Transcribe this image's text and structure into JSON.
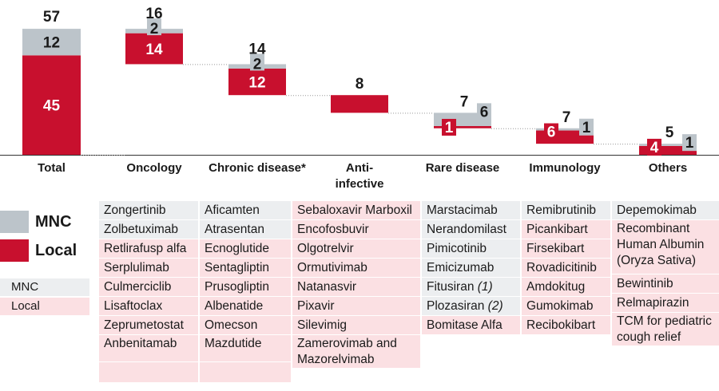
{
  "colors": {
    "mnc": "#bcc4ca",
    "local": "#c8102e",
    "mnc_light": "#eceef0",
    "local_light": "#fbe0e3"
  },
  "chart_data": {
    "type": "bar",
    "subtype": "waterfall",
    "categories": [
      "Total",
      "Oncology",
      "Chronic disease*",
      "Anti-\ninfective",
      "Rare disease",
      "Immunology",
      "Others"
    ],
    "series": [
      {
        "name": "Local",
        "values": [
          45,
          14,
          12,
          8,
          1,
          6,
          4
        ]
      },
      {
        "name": "MNC",
        "values": [
          12,
          2,
          2,
          0,
          6,
          1,
          1
        ]
      }
    ],
    "totals": [
      57,
      16,
      14,
      8,
      7,
      7,
      5
    ]
  },
  "legend": {
    "mnc": "MNC",
    "local": "Local"
  },
  "mini_legend": {
    "mnc": "MNC",
    "local": "Local"
  },
  "table": [
    {
      "category": "Oncology",
      "rows": [
        {
          "name": "Zongertinib",
          "type": "mnc"
        },
        {
          "name": "Zolbetuximab",
          "type": "mnc"
        },
        {
          "name": "Retlirafusp alfa",
          "type": "local"
        },
        {
          "name": "Serplulimab",
          "type": "local"
        },
        {
          "name": "Culmerciclib",
          "type": "local"
        },
        {
          "name": "Lisaftoclax",
          "type": "local"
        },
        {
          "name": "Zeprumetostat",
          "type": "local"
        },
        {
          "name": "Anbenitamab",
          "type": "local"
        },
        {
          "name": "",
          "type": "local"
        }
      ]
    },
    {
      "category": "Chronic disease*",
      "rows": [
        {
          "name": "Aficamten",
          "type": "mnc"
        },
        {
          "name": "Atrasentan",
          "type": "mnc"
        },
        {
          "name": "Ecnoglutide",
          "type": "local"
        },
        {
          "name": "Sentagliptin",
          "type": "local"
        },
        {
          "name": "Prusogliptin",
          "type": "local"
        },
        {
          "name": "Albenatide",
          "type": "local"
        },
        {
          "name": "Omecson",
          "type": "local"
        },
        {
          "name": "Mazdutide",
          "type": "local"
        },
        {
          "name": "",
          "type": "local"
        }
      ]
    },
    {
      "category": "Anti-infective",
      "rows": [
        {
          "name": "Sebaloxavir Marboxil",
          "type": "local"
        },
        {
          "name": "Encofosbuvir",
          "type": "local"
        },
        {
          "name": "Olgotrelvir",
          "type": "local"
        },
        {
          "name": "Ormutivimab",
          "type": "local"
        },
        {
          "name": "Natanasvir",
          "type": "local"
        },
        {
          "name": "Pixavir",
          "type": "local"
        },
        {
          "name": "Silevimig",
          "type": "local"
        },
        {
          "name": "Zamerovimab and Mazorelvimab",
          "type": "local"
        }
      ]
    },
    {
      "category": "Rare disease",
      "rows": [
        {
          "name": "Marstacimab",
          "type": "mnc"
        },
        {
          "name": "Nerandomilast",
          "type": "mnc"
        },
        {
          "name": "Pimicotinib",
          "type": "mnc"
        },
        {
          "name": "Emicizumab",
          "type": "mnc"
        },
        {
          "name": "Fitusiran",
          "note": "(1)",
          "type": "mnc"
        },
        {
          "name": "Plozasiran",
          "note": "(2)",
          "type": "mnc"
        },
        {
          "name": "Bomitase Alfa",
          "type": "local"
        }
      ]
    },
    {
      "category": "Immunology",
      "rows": [
        {
          "name": "Remibrutinib",
          "type": "mnc"
        },
        {
          "name": "Picankibart",
          "type": "local"
        },
        {
          "name": "Firsekibart",
          "type": "local"
        },
        {
          "name": "Rovadicitinib",
          "type": "local"
        },
        {
          "name": "Amdokitug",
          "type": "local"
        },
        {
          "name": "Gumokimab",
          "type": "local"
        },
        {
          "name": "Recibokibart",
          "type": "local"
        }
      ]
    },
    {
      "category": "Others",
      "rows": [
        {
          "name": "Depemokimab",
          "type": "mnc"
        },
        {
          "name": "Recombinant Human Albumin (Oryza Sativa)",
          "type": "local"
        },
        {
          "name": "Bewintinib",
          "type": "local"
        },
        {
          "name": "Relmapirazin",
          "type": "local"
        },
        {
          "name": "TCM for pediatric cough relief",
          "type": "local"
        }
      ]
    }
  ]
}
